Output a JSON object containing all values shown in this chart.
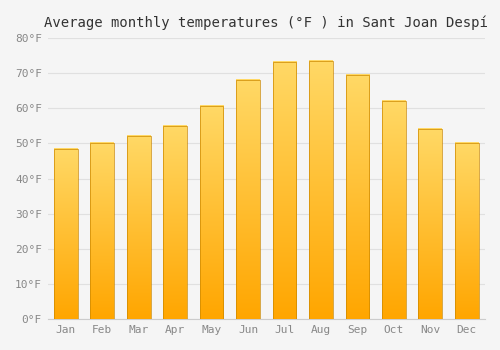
{
  "title": "Average monthly temperatures (°F ) in Sant Joan Despí",
  "months": [
    "Jan",
    "Feb",
    "Mar",
    "Apr",
    "May",
    "Jun",
    "Jul",
    "Aug",
    "Sep",
    "Oct",
    "Nov",
    "Dec"
  ],
  "values": [
    48.5,
    50.0,
    52.0,
    55.0,
    60.5,
    68.0,
    73.0,
    73.5,
    69.5,
    62.0,
    54.0,
    50.0
  ],
  "bar_color_top": "#FFD966",
  "bar_color_bottom": "#FFA500",
  "bar_outline_color": "#CC8800",
  "ylim": [
    0,
    80
  ],
  "yticks": [
    0,
    10,
    20,
    30,
    40,
    50,
    60,
    70,
    80
  ],
  "ytick_labels": [
    "0°F",
    "10°F",
    "20°F",
    "30°F",
    "40°F",
    "50°F",
    "60°F",
    "70°F",
    "80°F"
  ],
  "background_color": "#f5f5f5",
  "grid_color": "#e0e0e0",
  "title_fontsize": 10,
  "tick_fontsize": 8,
  "bar_width": 0.65
}
